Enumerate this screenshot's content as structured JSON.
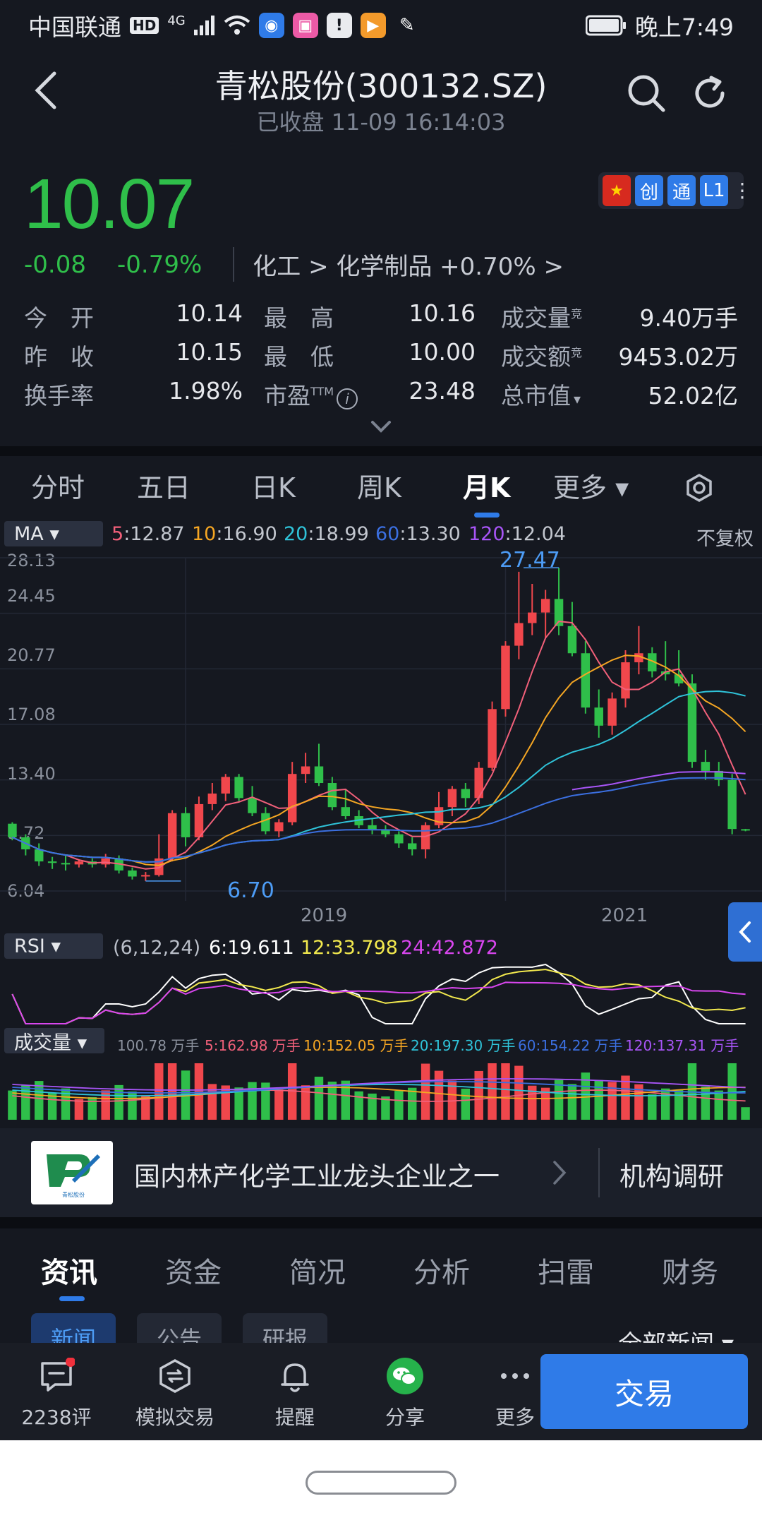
{
  "status_bar": {
    "carrier": "中国联通",
    "hd": "HD",
    "network": "4G",
    "time": "晚上7:49",
    "app_icons": [
      "lightbulb-icon",
      "paint-icon",
      "alert-icon",
      "play-icon",
      "study-icon"
    ]
  },
  "header": {
    "title": "青松股份(300132.SZ)",
    "subtitle": "已收盘 11-09 16:14:03"
  },
  "quote": {
    "price": "10.07",
    "change": "-0.08",
    "change_pct": "-0.79%",
    "sector": "化工 > 化学制品 +0.70% >",
    "badges": [
      "★",
      "创",
      "通",
      "L1"
    ],
    "colors": {
      "down": "#2fbf4a",
      "up": "#f0474c",
      "accent": "#2f7be8"
    },
    "rows": [
      [
        {
          "label": "今　开",
          "value": "10.14"
        },
        {
          "label": "最　高",
          "value": "10.16"
        },
        {
          "label": "成交量",
          "sup": "竞",
          "value": "9.40万手"
        }
      ],
      [
        {
          "label": "昨　收",
          "value": "10.15"
        },
        {
          "label": "最　低",
          "value": "10.00"
        },
        {
          "label": "成交额",
          "sup": "竞",
          "value": "9453.02万"
        }
      ],
      [
        {
          "label": "换手率",
          "value": "1.98%"
        },
        {
          "label": "市盈",
          "sup": "TTM",
          "value": "23.48"
        },
        {
          "label": "总市值",
          "sup": "▾",
          "value": "52.02亿"
        }
      ]
    ]
  },
  "period_tabs": {
    "items": [
      "分时",
      "五日",
      "日K",
      "周K",
      "月K",
      "更多 ▾"
    ],
    "active": "月K"
  },
  "ma_legend": {
    "selector": "MA ▾",
    "items": [
      {
        "key": "5",
        "value": ":12.87",
        "color": "#f2607a"
      },
      {
        "key": "10",
        "value": ":16.90",
        "color": "#f5a623"
      },
      {
        "key": "20",
        "value": ":18.99",
        "color": "#2fc3d9"
      },
      {
        "key": "60",
        "value": ":13.30",
        "color": "#3b6fe0"
      },
      {
        "key": "120",
        "value": ":12.04",
        "color": "#a855f7"
      }
    ],
    "adjust": "不复权"
  },
  "chart_data": {
    "type": "candlestick",
    "period": "monthly",
    "y_ticks": [
      "28.13",
      "24.45",
      "20.77",
      "17.08",
      "13.40",
      "9.72",
      "6.04"
    ],
    "ylim": [
      6.04,
      28.13
    ],
    "x_ticks": [
      {
        "label": "2019",
        "index": 13
      },
      {
        "label": "2021",
        "index": 37
      }
    ],
    "high_label": "27.47",
    "low_label": "6.70",
    "candles": [
      {
        "o": 10.5,
        "h": 10.6,
        "l": 9.4,
        "c": 9.6
      },
      {
        "o": 9.6,
        "h": 9.8,
        "l": 8.4,
        "c": 8.8
      },
      {
        "o": 8.8,
        "h": 9.2,
        "l": 7.7,
        "c": 8.0
      },
      {
        "o": 8.0,
        "h": 8.3,
        "l": 7.5,
        "c": 7.9
      },
      {
        "o": 7.9,
        "h": 8.4,
        "l": 7.4,
        "c": 7.8
      },
      {
        "o": 7.8,
        "h": 8.1,
        "l": 7.6,
        "c": 8.0
      },
      {
        "o": 8.0,
        "h": 8.2,
        "l": 7.6,
        "c": 7.8
      },
      {
        "o": 7.8,
        "h": 8.5,
        "l": 7.6,
        "c": 8.2
      },
      {
        "o": 8.2,
        "h": 8.4,
        "l": 7.2,
        "c": 7.4
      },
      {
        "o": 7.4,
        "h": 7.6,
        "l": 6.8,
        "c": 7.0
      },
      {
        "o": 7.0,
        "h": 7.3,
        "l": 6.7,
        "c": 7.1
      },
      {
        "o": 7.1,
        "h": 9.8,
        "l": 7.0,
        "c": 8.2
      },
      {
        "o": 8.2,
        "h": 11.4,
        "l": 8.0,
        "c": 11.2
      },
      {
        "o": 11.2,
        "h": 11.6,
        "l": 9.0,
        "c": 9.6
      },
      {
        "o": 9.6,
        "h": 12.3,
        "l": 9.4,
        "c": 11.8
      },
      {
        "o": 11.8,
        "h": 13.2,
        "l": 11.4,
        "c": 12.5
      },
      {
        "o": 12.5,
        "h": 13.8,
        "l": 12.0,
        "c": 13.6
      },
      {
        "o": 13.6,
        "h": 13.8,
        "l": 12.0,
        "c": 12.2
      },
      {
        "o": 12.2,
        "h": 13.0,
        "l": 11.0,
        "c": 11.2
      },
      {
        "o": 11.2,
        "h": 11.6,
        "l": 9.8,
        "c": 10.0
      },
      {
        "o": 10.0,
        "h": 10.8,
        "l": 9.6,
        "c": 10.6
      },
      {
        "o": 10.6,
        "h": 14.6,
        "l": 10.4,
        "c": 13.8
      },
      {
        "o": 13.8,
        "h": 15.2,
        "l": 13.2,
        "c": 14.3
      },
      {
        "o": 14.3,
        "h": 15.8,
        "l": 13.0,
        "c": 13.2
      },
      {
        "o": 13.2,
        "h": 13.6,
        "l": 11.4,
        "c": 11.6
      },
      {
        "o": 11.6,
        "h": 12.8,
        "l": 10.8,
        "c": 11.0
      },
      {
        "o": 11.0,
        "h": 11.4,
        "l": 10.2,
        "c": 10.4
      },
      {
        "o": 10.4,
        "h": 10.8,
        "l": 9.8,
        "c": 10.1
      },
      {
        "o": 10.1,
        "h": 10.4,
        "l": 9.6,
        "c": 9.8
      },
      {
        "o": 9.8,
        "h": 10.0,
        "l": 8.9,
        "c": 9.2
      },
      {
        "o": 9.2,
        "h": 9.6,
        "l": 8.4,
        "c": 8.8
      },
      {
        "o": 8.8,
        "h": 10.6,
        "l": 8.2,
        "c": 10.4
      },
      {
        "o": 10.4,
        "h": 12.6,
        "l": 10.2,
        "c": 11.6
      },
      {
        "o": 11.6,
        "h": 13.0,
        "l": 11.0,
        "c": 12.8
      },
      {
        "o": 12.8,
        "h": 13.2,
        "l": 11.6,
        "c": 12.2
      },
      {
        "o": 12.2,
        "h": 14.6,
        "l": 11.8,
        "c": 14.2
      },
      {
        "o": 14.2,
        "h": 18.6,
        "l": 14.0,
        "c": 18.1
      },
      {
        "o": 18.1,
        "h": 22.6,
        "l": 17.6,
        "c": 22.3
      },
      {
        "o": 22.3,
        "h": 27.2,
        "l": 21.4,
        "c": 23.8
      },
      {
        "o": 23.8,
        "h": 26.4,
        "l": 23.0,
        "c": 24.5
      },
      {
        "o": 24.5,
        "h": 26.0,
        "l": 22.8,
        "c": 25.4
      },
      {
        "o": 25.4,
        "h": 27.47,
        "l": 23.0,
        "c": 23.6
      },
      {
        "o": 23.6,
        "h": 25.2,
        "l": 21.6,
        "c": 21.8
      },
      {
        "o": 21.8,
        "h": 22.6,
        "l": 17.8,
        "c": 18.2
      },
      {
        "o": 18.2,
        "h": 19.4,
        "l": 16.2,
        "c": 17.0
      },
      {
        "o": 17.0,
        "h": 19.2,
        "l": 16.4,
        "c": 18.8
      },
      {
        "o": 18.8,
        "h": 22.0,
        "l": 18.2,
        "c": 21.2
      },
      {
        "o": 21.2,
        "h": 23.6,
        "l": 20.4,
        "c": 21.8
      },
      {
        "o": 21.8,
        "h": 22.2,
        "l": 20.2,
        "c": 20.6
      },
      {
        "o": 20.6,
        "h": 22.6,
        "l": 20.0,
        "c": 20.4
      },
      {
        "o": 20.4,
        "h": 22.0,
        "l": 19.6,
        "c": 19.8
      },
      {
        "o": 19.8,
        "h": 20.4,
        "l": 14.2,
        "c": 14.6
      },
      {
        "o": 14.6,
        "h": 15.4,
        "l": 13.4,
        "c": 14.0
      },
      {
        "o": 14.0,
        "h": 14.6,
        "l": 13.0,
        "c": 13.4
      },
      {
        "o": 13.4,
        "h": 13.8,
        "l": 9.8,
        "c": 10.15
      },
      {
        "o": 10.14,
        "h": 10.16,
        "l": 10.0,
        "c": 10.07
      }
    ]
  },
  "rsi": {
    "selector": "RSI ▾",
    "params": "(6,12,24)",
    "items": [
      {
        "label": "6:19.611",
        "color": "#ffffff"
      },
      {
        "label": "12:33.798",
        "color": "#f2e94e"
      },
      {
        "label": "24:42.872",
        "color": "#d946ef"
      }
    ]
  },
  "volume": {
    "selector": "成交量 ▾",
    "items": [
      {
        "label": "100.78 万手",
        "color": "#8b919d"
      },
      {
        "label": "5:162.98 万手",
        "color": "#f2607a"
      },
      {
        "label": "10:152.05 万手",
        "color": "#f5a623"
      },
      {
        "label": "20:197.30 万手",
        "color": "#2fc3d9"
      },
      {
        "label": "60:154.22 万手",
        "color": "#3b6fe0"
      },
      {
        "label": "120:137.31 万手",
        "color": "#a855f7"
      }
    ]
  },
  "promo": {
    "text": "国内林产化学工业龙头企业之一",
    "link": "机构调研",
    "logo_caption": "青松股份"
  },
  "info_tabs": {
    "items": [
      "资讯",
      "资金",
      "简况",
      "分析",
      "扫雷",
      "财务"
    ],
    "active": "资讯"
  },
  "sub_tabs": {
    "items": [
      "新闻",
      "公告",
      "研报"
    ],
    "all_news": "全部新闻 ▾"
  },
  "bottom_bar": {
    "items": [
      {
        "label": "2238评",
        "icon": "comment-icon"
      },
      {
        "label": "模拟交易",
        "icon": "simulated-trade-icon"
      },
      {
        "label": "提醒",
        "icon": "bell-icon"
      },
      {
        "label": "分享",
        "icon": "wechat-icon"
      },
      {
        "label": "更多",
        "icon": "more-icon"
      }
    ],
    "trade": "交易"
  }
}
